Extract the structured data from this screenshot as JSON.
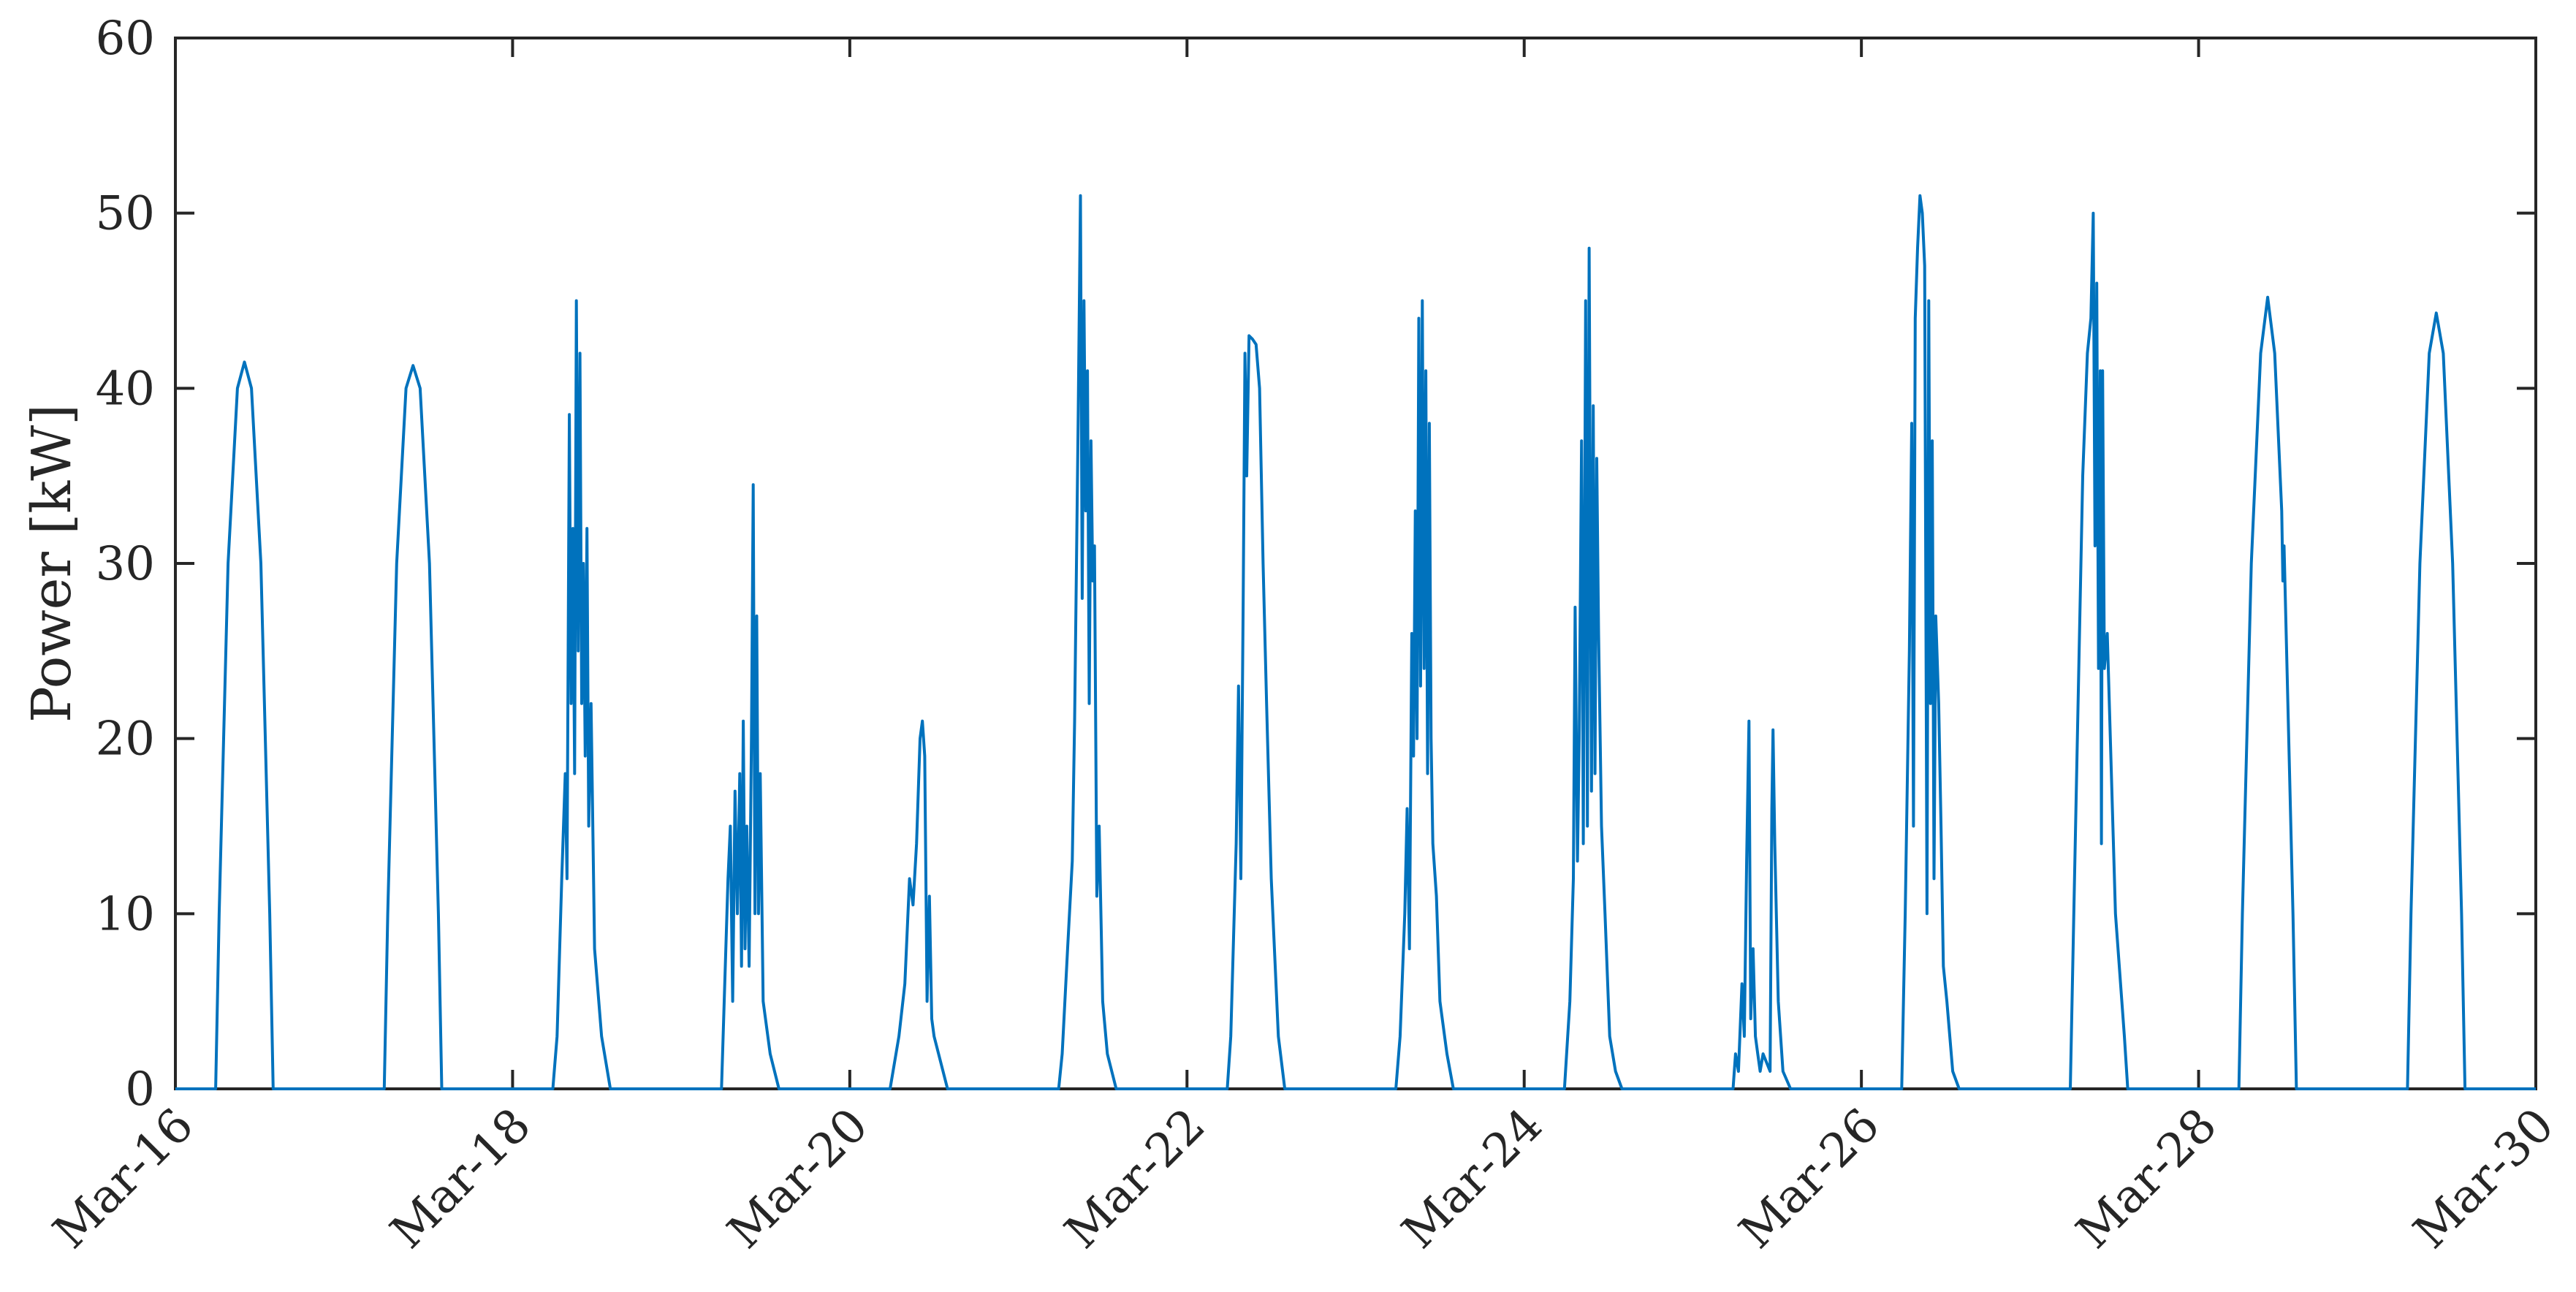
{
  "chart_data": {
    "type": "line",
    "title": "",
    "xlabel": "",
    "ylabel": "Power [kW]",
    "ylim": [
      0,
      60
    ],
    "xlim": [
      "2019-03-16",
      "2019-03-30"
    ],
    "grid": false,
    "legend": "none",
    "y_ticks": [
      0,
      10,
      20,
      30,
      40,
      50,
      60
    ],
    "x_ticks": [
      {
        "date": "2019-03-16",
        "label": "Mar-16"
      },
      {
        "date": "2019-03-18",
        "label": "Mar-18"
      },
      {
        "date": "2019-03-20",
        "label": "Mar-20"
      },
      {
        "date": "2019-03-22",
        "label": "Mar-22"
      },
      {
        "date": "2019-03-24",
        "label": "Mar-24"
      },
      {
        "date": "2019-03-26",
        "label": "Mar-26"
      },
      {
        "date": "2019-03-28",
        "label": "Mar-28"
      },
      {
        "date": "2019-03-30",
        "label": "Mar-30"
      }
    ],
    "series": [
      {
        "color": "#0072BD",
        "points": [
          [
            "2019-03-16T00:00",
            0
          ],
          [
            "2019-03-16T05:44",
            0
          ],
          [
            "2019-03-16T06:14",
            10
          ],
          [
            "2019-03-16T07:30",
            30
          ],
          [
            "2019-03-16T08:50",
            40
          ],
          [
            "2019-03-16T09:50",
            41.5
          ],
          [
            "2019-03-16T10:50",
            40
          ],
          [
            "2019-03-16T12:10",
            30
          ],
          [
            "2019-03-16T13:26",
            10
          ],
          [
            "2019-03-16T13:55",
            0
          ],
          [
            "2019-03-17T05:44",
            0
          ],
          [
            "2019-03-17T06:14",
            10
          ],
          [
            "2019-03-17T07:30",
            30
          ],
          [
            "2019-03-17T08:50",
            40
          ],
          [
            "2019-03-17T09:50",
            41.3
          ],
          [
            "2019-03-17T10:50",
            40
          ],
          [
            "2019-03-17T12:10",
            30
          ],
          [
            "2019-03-17T13:26",
            10
          ],
          [
            "2019-03-17T13:55",
            0
          ],
          [
            "2019-03-18T05:44",
            0
          ],
          [
            "2019-03-18T06:20",
            3
          ],
          [
            "2019-03-18T07:00",
            12
          ],
          [
            "2019-03-18T07:30",
            18
          ],
          [
            "2019-03-18T07:45",
            12
          ],
          [
            "2019-03-18T08:05",
            38.5
          ],
          [
            "2019-03-18T08:20",
            22
          ],
          [
            "2019-03-18T08:35",
            32
          ],
          [
            "2019-03-18T08:50",
            18
          ],
          [
            "2019-03-18T09:05",
            45
          ],
          [
            "2019-03-18T09:20",
            25
          ],
          [
            "2019-03-18T09:35",
            42
          ],
          [
            "2019-03-18T09:50",
            22
          ],
          [
            "2019-03-18T10:05",
            30
          ],
          [
            "2019-03-18T10:20",
            19
          ],
          [
            "2019-03-18T10:35",
            32
          ],
          [
            "2019-03-18T10:50",
            15
          ],
          [
            "2019-03-18T11:10",
            22
          ],
          [
            "2019-03-18T11:40",
            8
          ],
          [
            "2019-03-18T12:40",
            3
          ],
          [
            "2019-03-18T13:55",
            0
          ],
          [
            "2019-03-19T05:44",
            0
          ],
          [
            "2019-03-19T06:40",
            12
          ],
          [
            "2019-03-19T07:00",
            15
          ],
          [
            "2019-03-19T07:20",
            5
          ],
          [
            "2019-03-19T07:40",
            17
          ],
          [
            "2019-03-19T08:00",
            10
          ],
          [
            "2019-03-19T08:20",
            18
          ],
          [
            "2019-03-19T08:35",
            7
          ],
          [
            "2019-03-19T08:50",
            21
          ],
          [
            "2019-03-19T09:05",
            8
          ],
          [
            "2019-03-19T09:20",
            15
          ],
          [
            "2019-03-19T09:40",
            7
          ],
          [
            "2019-03-19T10:00",
            20
          ],
          [
            "2019-03-19T10:15",
            34.5
          ],
          [
            "2019-03-19T10:30",
            10
          ],
          [
            "2019-03-19T10:45",
            27
          ],
          [
            "2019-03-19T11:00",
            10
          ],
          [
            "2019-03-19T11:15",
            18
          ],
          [
            "2019-03-19T11:40",
            5
          ],
          [
            "2019-03-19T12:40",
            2
          ],
          [
            "2019-03-19T13:55",
            0
          ],
          [
            "2019-03-20T05:44",
            0
          ],
          [
            "2019-03-20T07:00",
            3
          ],
          [
            "2019-03-20T07:50",
            6
          ],
          [
            "2019-03-20T08:30",
            12
          ],
          [
            "2019-03-20T09:00",
            10.5
          ],
          [
            "2019-03-20T09:30",
            14
          ],
          [
            "2019-03-20T10:00",
            20
          ],
          [
            "2019-03-20T10:20",
            21
          ],
          [
            "2019-03-20T10:40",
            19
          ],
          [
            "2019-03-20T11:00",
            5
          ],
          [
            "2019-03-20T11:20",
            11
          ],
          [
            "2019-03-20T11:40",
            4
          ],
          [
            "2019-03-20T12:00",
            3
          ],
          [
            "2019-03-20T13:55",
            0
          ],
          [
            "2019-03-21T05:44",
            0
          ],
          [
            "2019-03-21T06:14",
            2
          ],
          [
            "2019-03-21T07:00",
            8
          ],
          [
            "2019-03-21T07:40",
            13
          ],
          [
            "2019-03-21T08:00",
            21
          ],
          [
            "2019-03-21T08:30",
            38
          ],
          [
            "2019-03-21T08:50",
            51
          ],
          [
            "2019-03-21T09:05",
            28
          ],
          [
            "2019-03-21T09:20",
            45
          ],
          [
            "2019-03-21T09:35",
            33
          ],
          [
            "2019-03-21T09:50",
            41
          ],
          [
            "2019-03-21T10:05",
            22
          ],
          [
            "2019-03-21T10:20",
            37
          ],
          [
            "2019-03-21T10:35",
            29
          ],
          [
            "2019-03-21T10:50",
            31
          ],
          [
            "2019-03-21T11:10",
            11
          ],
          [
            "2019-03-21T11:30",
            15
          ],
          [
            "2019-03-21T12:00",
            5
          ],
          [
            "2019-03-21T12:40",
            2
          ],
          [
            "2019-03-21T13:55",
            0
          ],
          [
            "2019-03-22T05:44",
            0
          ],
          [
            "2019-03-22T06:14",
            3
          ],
          [
            "2019-03-22T07:00",
            14
          ],
          [
            "2019-03-22T07:20",
            23
          ],
          [
            "2019-03-22T07:40",
            12
          ],
          [
            "2019-03-22T08:00",
            28
          ],
          [
            "2019-03-22T08:15",
            42
          ],
          [
            "2019-03-22T08:30",
            35
          ],
          [
            "2019-03-22T08:50",
            43
          ],
          [
            "2019-03-22T09:20",
            42.8
          ],
          [
            "2019-03-22T09:50",
            42.5
          ],
          [
            "2019-03-22T10:20",
            40
          ],
          [
            "2019-03-22T10:50",
            30
          ],
          [
            "2019-03-22T11:20",
            22
          ],
          [
            "2019-03-22T12:00",
            12
          ],
          [
            "2019-03-22T13:00",
            3
          ],
          [
            "2019-03-22T13:55",
            0
          ],
          [
            "2019-03-23T05:44",
            0
          ],
          [
            "2019-03-23T06:20",
            3
          ],
          [
            "2019-03-23T07:00",
            10
          ],
          [
            "2019-03-23T07:20",
            16
          ],
          [
            "2019-03-23T07:40",
            8
          ],
          [
            "2019-03-23T08:00",
            26
          ],
          [
            "2019-03-23T08:15",
            19
          ],
          [
            "2019-03-23T08:30",
            33
          ],
          [
            "2019-03-23T08:45",
            20
          ],
          [
            "2019-03-23T09:00",
            44
          ],
          [
            "2019-03-23T09:15",
            23
          ],
          [
            "2019-03-23T09:30",
            45
          ],
          [
            "2019-03-23T09:45",
            24
          ],
          [
            "2019-03-23T10:00",
            41
          ],
          [
            "2019-03-23T10:15",
            18
          ],
          [
            "2019-03-23T10:30",
            38
          ],
          [
            "2019-03-23T10:45",
            20
          ],
          [
            "2019-03-23T11:00",
            14
          ],
          [
            "2019-03-23T11:30",
            11
          ],
          [
            "2019-03-23T12:00",
            5
          ],
          [
            "2019-03-23T13:00",
            2
          ],
          [
            "2019-03-23T13:55",
            0
          ],
          [
            "2019-03-24T05:44",
            0
          ],
          [
            "2019-03-24T06:30",
            5
          ],
          [
            "2019-03-24T07:00",
            12
          ],
          [
            "2019-03-24T07:15",
            27.5
          ],
          [
            "2019-03-24T07:35",
            13
          ],
          [
            "2019-03-24T07:50",
            20
          ],
          [
            "2019-03-24T08:10",
            37
          ],
          [
            "2019-03-24T08:25",
            14
          ],
          [
            "2019-03-24T08:45",
            45
          ],
          [
            "2019-03-24T09:00",
            15
          ],
          [
            "2019-03-24T09:15",
            48
          ],
          [
            "2019-03-24T09:35",
            17
          ],
          [
            "2019-03-24T09:50",
            39
          ],
          [
            "2019-03-24T10:05",
            18
          ],
          [
            "2019-03-24T10:20",
            36
          ],
          [
            "2019-03-24T10:35",
            26
          ],
          [
            "2019-03-24T11:00",
            15
          ],
          [
            "2019-03-24T11:30",
            10
          ],
          [
            "2019-03-24T12:10",
            3
          ],
          [
            "2019-03-24T13:00",
            1
          ],
          [
            "2019-03-24T13:55",
            0
          ],
          [
            "2019-03-25T05:44",
            0
          ],
          [
            "2019-03-25T06:05",
            2
          ],
          [
            "2019-03-25T06:30",
            1
          ],
          [
            "2019-03-25T07:00",
            6
          ],
          [
            "2019-03-25T07:20",
            3
          ],
          [
            "2019-03-25T07:40",
            13
          ],
          [
            "2019-03-25T08:00",
            21
          ],
          [
            "2019-03-25T08:15",
            4
          ],
          [
            "2019-03-25T08:35",
            8
          ],
          [
            "2019-03-25T08:55",
            3
          ],
          [
            "2019-03-25T09:15",
            2
          ],
          [
            "2019-03-25T09:35",
            1
          ],
          [
            "2019-03-25T10:00",
            2
          ],
          [
            "2019-03-25T10:30",
            1.5
          ],
          [
            "2019-03-25T11:00",
            1
          ],
          [
            "2019-03-25T11:15",
            16
          ],
          [
            "2019-03-25T11:25",
            20.5
          ],
          [
            "2019-03-25T11:40",
            14
          ],
          [
            "2019-03-25T12:10",
            5
          ],
          [
            "2019-03-25T12:50",
            1
          ],
          [
            "2019-03-25T13:55",
            0
          ],
          [
            "2019-03-26T05:44",
            0
          ],
          [
            "2019-03-26T06:14",
            10
          ],
          [
            "2019-03-26T06:50",
            25
          ],
          [
            "2019-03-26T07:10",
            38
          ],
          [
            "2019-03-26T07:25",
            15
          ],
          [
            "2019-03-26T07:40",
            44
          ],
          [
            "2019-03-26T08:00",
            48
          ],
          [
            "2019-03-26T08:20",
            51
          ],
          [
            "2019-03-26T08:40",
            50
          ],
          [
            "2019-03-26T09:00",
            47
          ],
          [
            "2019-03-26T09:20",
            10
          ],
          [
            "2019-03-26T09:35",
            45
          ],
          [
            "2019-03-26T09:50",
            22
          ],
          [
            "2019-03-26T10:05",
            37
          ],
          [
            "2019-03-26T10:20",
            12
          ],
          [
            "2019-03-26T10:35",
            27
          ],
          [
            "2019-03-26T11:00",
            22
          ],
          [
            "2019-03-26T11:20",
            15
          ],
          [
            "2019-03-26T11:40",
            7
          ],
          [
            "2019-03-26T12:10",
            5
          ],
          [
            "2019-03-26T13:00",
            1
          ],
          [
            "2019-03-26T13:55",
            0
          ],
          [
            "2019-03-27T05:44",
            0
          ],
          [
            "2019-03-27T06:14",
            10
          ],
          [
            "2019-03-27T07:00",
            25
          ],
          [
            "2019-03-27T07:30",
            35
          ],
          [
            "2019-03-27T08:10",
            42
          ],
          [
            "2019-03-27T08:40",
            44
          ],
          [
            "2019-03-27T09:00",
            50
          ],
          [
            "2019-03-27T09:15",
            31
          ],
          [
            "2019-03-27T09:30",
            46
          ],
          [
            "2019-03-27T09:45",
            24
          ],
          [
            "2019-03-27T10:00",
            41
          ],
          [
            "2019-03-27T10:10",
            14
          ],
          [
            "2019-03-27T10:20",
            41
          ],
          [
            "2019-03-27T10:35",
            24
          ],
          [
            "2019-03-27T11:00",
            26
          ],
          [
            "2019-03-27T12:10",
            10
          ],
          [
            "2019-03-27T13:26",
            3
          ],
          [
            "2019-03-27T13:55",
            0
          ],
          [
            "2019-03-28T05:44",
            0
          ],
          [
            "2019-03-28T06:14",
            10
          ],
          [
            "2019-03-28T07:30",
            30
          ],
          [
            "2019-03-28T08:50",
            42
          ],
          [
            "2019-03-28T09:50",
            45.2
          ],
          [
            "2019-03-28T10:50",
            42
          ],
          [
            "2019-03-28T11:50",
            33
          ],
          [
            "2019-03-28T12:00",
            29
          ],
          [
            "2019-03-28T12:10",
            31
          ],
          [
            "2019-03-28T13:26",
            10
          ],
          [
            "2019-03-28T13:55",
            0
          ],
          [
            "2019-03-29T05:44",
            0
          ],
          [
            "2019-03-29T06:14",
            10
          ],
          [
            "2019-03-29T07:30",
            30
          ],
          [
            "2019-03-29T08:50",
            42
          ],
          [
            "2019-03-29T09:50",
            44.3
          ],
          [
            "2019-03-29T10:50",
            42
          ],
          [
            "2019-03-29T12:10",
            30
          ],
          [
            "2019-03-29T13:26",
            10
          ],
          [
            "2019-03-29T13:55",
            0
          ],
          [
            "2019-03-30T00:00",
            0
          ]
        ]
      }
    ]
  }
}
